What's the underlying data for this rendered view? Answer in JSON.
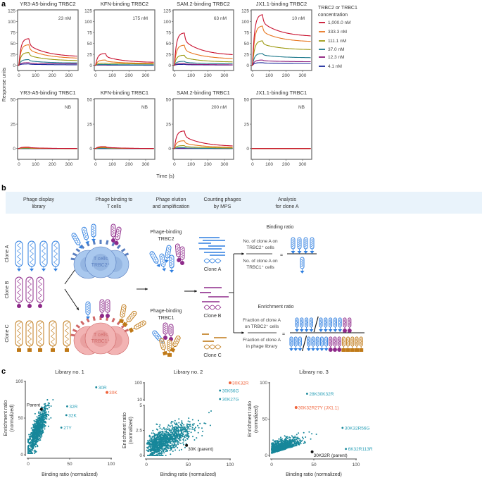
{
  "panel_labels": [
    "a",
    "b",
    "c"
  ],
  "colors": {
    "c1000": "#c8102e",
    "c333": "#e87722",
    "c111": "#9c9a12",
    "c37": "#1f7a8c",
    "c12": "#8b1a7a",
    "c4": "#1c2a9c",
    "scatter": "#17879a",
    "highlight": "#f0643c",
    "label_teal": "#2aa0b8",
    "parent": "#111111",
    "clone_a": "#2f7fe0",
    "clone_b": "#8e2a8a",
    "clone_c": "#c07a18",
    "header_band": "#e9f3fb",
    "tcell_trbc2": "#a9c8ee",
    "tcell_trbc1": "#f2b3b3"
  },
  "chart_data": [
    {
      "type": "line",
      "panel": "a",
      "xlabel": "Time (s)",
      "ylabel": "Response units",
      "legend": {
        "title_lines": [
          "TRBC2 or TRBC1",
          "concentration"
        ],
        "entries": [
          "1,000.0 nM",
          "333.3 nM",
          "111.1 nM",
          "37.0 nM",
          "12.3 nM",
          "4.1 nM"
        ],
        "placement": "right"
      },
      "xticks": [
        "0",
        "100",
        "200",
        "300"
      ],
      "xlim": [
        -8,
        355
      ],
      "subplots": [
        {
          "title": "YR3-A5-binding TRBC2",
          "annotation": "23 nM",
          "ylim": [
            -12,
            127
          ],
          "yticks": [
            "0",
            "25",
            "50",
            "75",
            "100",
            "125"
          ],
          "series": [
            {
              "peak": 61,
              "end": 19
            },
            {
              "peak": 47,
              "end": 15
            },
            {
              "peak": 29,
              "end": 10
            },
            {
              "peak": 13,
              "end": 5
            },
            {
              "peak": 6,
              "end": 3
            },
            {
              "peak": 3,
              "end": 1
            }
          ]
        },
        {
          "title": "KFN-binding TRBC2",
          "annotation": "175 nM",
          "ylim": [
            -12,
            127
          ],
          "yticks": [
            "0",
            "25",
            "50",
            "75",
            "100",
            "125"
          ],
          "series": [
            {
              "peak": 27,
              "end": 6
            },
            {
              "peak": 12,
              "end": 4
            },
            {
              "peak": 5,
              "end": 3
            },
            {
              "peak": 2,
              "end": 1
            },
            {
              "peak": 1,
              "end": 1
            },
            {
              "peak": 0.5,
              "end": 0
            }
          ]
        },
        {
          "title": "SAM.2-binding TRBC2",
          "annotation": "63 nM",
          "ylim": [
            -12,
            127
          ],
          "yticks": [
            "0",
            "25",
            "50",
            "75",
            "100",
            "125"
          ],
          "series": [
            {
              "peak": 74,
              "end": 22
            },
            {
              "peak": 46,
              "end": 14
            },
            {
              "peak": 23,
              "end": 7
            },
            {
              "peak": 9,
              "end": 3
            },
            {
              "peak": 4,
              "end": 1
            },
            {
              "peak": 2,
              "end": 0.5
            }
          ]
        },
        {
          "title": "JX1.1-binding TRBC2",
          "annotation": "10 nM",
          "ylim": [
            -12,
            127
          ],
          "yticks": [
            "0",
            "25",
            "50",
            "75",
            "100",
            "125"
          ],
          "series": [
            {
              "peak": 116,
              "end": 65
            },
            {
              "peak": 90,
              "end": 53
            },
            {
              "peak": 56,
              "end": 35
            },
            {
              "peak": 27,
              "end": 17
            },
            {
              "peak": 12,
              "end": 8
            },
            {
              "peak": 6,
              "end": 4
            }
          ]
        },
        {
          "title": "YR3-A5-binding TRBC1",
          "annotation": "NB",
          "ylim": [
            -11,
            51
          ],
          "yticks": [
            "0",
            "25",
            "50"
          ],
          "series": [
            {
              "peak": 1.5,
              "end": 0
            },
            {
              "peak": 1,
              "end": 0
            },
            {
              "peak": 0.5,
              "end": 0
            },
            {
              "peak": 0,
              "end": 0
            },
            {
              "peak": 0,
              "end": 0
            },
            {
              "peak": 0,
              "end": 0
            }
          ]
        },
        {
          "title": "KFN-binding TRBC1",
          "annotation": "NB",
          "ylim": [
            -11,
            51
          ],
          "yticks": [
            "0",
            "25",
            "50"
          ],
          "series": [
            {
              "peak": 2,
              "end": 0
            },
            {
              "peak": 1.5,
              "end": 0
            },
            {
              "peak": 1,
              "end": 0
            },
            {
              "peak": 0,
              "end": 0
            },
            {
              "peak": 0,
              "end": 0
            },
            {
              "peak": 0,
              "end": 0
            }
          ]
        },
        {
          "title": "SAM.2-binding TRBC1",
          "annotation": "200 nM",
          "ylim": [
            -11,
            51
          ],
          "yticks": [
            "0",
            "25",
            "50"
          ],
          "series": [
            {
              "peak": 18,
              "end": 2
            },
            {
              "peak": 8,
              "end": 1
            },
            {
              "peak": 3,
              "end": 0.5
            },
            {
              "peak": 1,
              "end": 0
            },
            {
              "peak": 0.5,
              "end": 0
            },
            {
              "peak": 0,
              "end": 0
            }
          ]
        },
        {
          "title": "JX1.1-binding TRBC1",
          "annotation": "NB",
          "ylim": [
            -11,
            51
          ],
          "yticks": [
            "0",
            "25",
            "50"
          ],
          "series": [
            {
              "peak": 0,
              "end": 0
            },
            {
              "peak": 0,
              "end": 0
            },
            {
              "peak": 0,
              "end": 0
            },
            {
              "peak": 0,
              "end": 0
            },
            {
              "peak": 0,
              "end": 0
            },
            {
              "peak": 0,
              "end": 0
            }
          ]
        }
      ]
    },
    {
      "type": "scatter",
      "panel": "c",
      "xlabel": "Binding ratio (normalized)",
      "ylabel_lines": [
        "Enrichment ratio",
        "(normalized)"
      ],
      "subplots": [
        {
          "title": "Library no. 1",
          "xlim": [
            0,
            100
          ],
          "ylim": [
            0,
            100
          ],
          "xticks": [
            "0",
            "50",
            "100"
          ],
          "yticks": [
            "0",
            "50",
            "100"
          ],
          "labeled_points": [
            {
              "label": "30R",
              "x": 82,
              "y": 92,
              "color": "teal"
            },
            {
              "label": "30K",
              "x": 95,
              "y": 85,
              "color": "orange"
            },
            {
              "label": "32R",
              "x": 47,
              "y": 66,
              "color": "teal"
            },
            {
              "label": "32K",
              "x": 46,
              "y": 54,
              "color": "teal"
            },
            {
              "label": "27Y",
              "x": 40,
              "y": 37,
              "color": "teal"
            },
            {
              "label": "Parent",
              "x": 16,
              "y": 62,
              "color": "black"
            }
          ]
        },
        {
          "title": "Library no. 2",
          "xlim": [
            0,
            100
          ],
          "ylim_lower": [
            0,
            5
          ],
          "ylim_upper": [
            10,
            100
          ],
          "broken_axis": true,
          "xticks": [
            "0",
            "50",
            "100"
          ],
          "yticks": [
            "0",
            "2.5",
            "5",
            "10",
            "100"
          ],
          "labeled_points": [
            {
              "label": "30K32R",
              "x": 100,
              "y": 100,
              "color": "orange"
            },
            {
              "label": "30K56G",
              "x": 88,
              "y": 35,
              "color": "teal"
            },
            {
              "label": "30K27G",
              "x": 88,
              "y": 11,
              "color": "teal"
            },
            {
              "label": "30K (parent)",
              "x": 48,
              "y": 1,
              "color": "black"
            }
          ]
        },
        {
          "title": "Library no. 3",
          "xlim": [
            0,
            100
          ],
          "ylim": [
            0,
            100
          ],
          "xticks": [
            "0",
            "50",
            "100"
          ],
          "yticks": [
            "0",
            "50",
            "100"
          ],
          "labeled_points": [
            {
              "label": "28K30K32R",
              "x": 42,
              "y": 85,
              "color": "teal"
            },
            {
              "label": "30K32R27Y (JX1.1)",
              "x": 29,
              "y": 66,
              "color": "orange"
            },
            {
              "label": "30K32R56G",
              "x": 84,
              "y": 38,
              "color": "teal"
            },
            {
              "label": "6K32R113R",
              "x": 88,
              "y": 9,
              "color": "teal"
            },
            {
              "label": "30K32R (parent)",
              "x": 48,
              "y": 5,
              "color": "black"
            }
          ]
        }
      ]
    }
  ],
  "diagram": {
    "steps": [
      [
        "Phage display",
        "library"
      ],
      [
        "Phage binding to",
        "T cells"
      ],
      [
        "Phage elution",
        "and amplification"
      ],
      [
        "Counting phages",
        "by MPS"
      ],
      [
        "Analysis",
        "for clone A"
      ]
    ],
    "clones": [
      "Clone A",
      "Clone B",
      "Clone C"
    ],
    "tcell_trbc2": [
      "T cells",
      "TRBC2⁺"
    ],
    "tcell_trbc1": [
      "T cells",
      "TRBC1⁺"
    ],
    "binding_trbc2": [
      "Phage-binding",
      "TRBC2"
    ],
    "binding_trbc1": [
      "Phage-binding",
      "TRBC1"
    ],
    "mps_clones": [
      "Clone A",
      "Clone B",
      "Clone C"
    ],
    "binding_ratio": {
      "title": "Binding ratio",
      "numerator": [
        "No. of clone A on",
        "TRBC2⁺ cells"
      ],
      "denominator": [
        "No. of clone A on",
        "TRBC1⁺ cells"
      ],
      "equals": "="
    },
    "enrichment_ratio": {
      "title": "Enrichment ratio",
      "numerator": [
        "Fraction of clone A",
        "on TRBC2⁺ cells"
      ],
      "denominator": [
        "Fraction of clone A",
        "in phage library"
      ],
      "equals": "="
    }
  }
}
